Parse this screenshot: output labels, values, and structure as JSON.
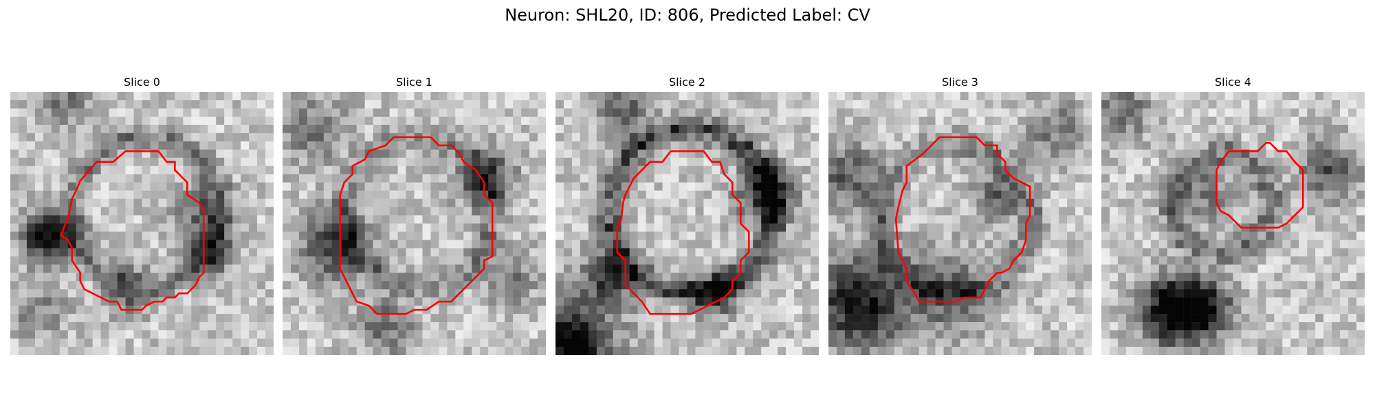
{
  "figure": {
    "title": "Neuron: SHL20, ID: 806, Predicted Label: CV"
  },
  "panels": [
    {
      "label": "Slice 0",
      "contour_color": "#ff0000",
      "image": "grayscale-em-patch"
    },
    {
      "label": "Slice 1",
      "contour_color": "#ff0000",
      "image": "grayscale-em-patch"
    },
    {
      "label": "Slice 2",
      "contour_color": "#ff0000",
      "image": "grayscale-em-patch"
    },
    {
      "label": "Slice 3",
      "contour_color": "#ff0000",
      "image": "grayscale-em-patch"
    },
    {
      "label": "Slice 4",
      "contour_color": "#ff0000",
      "image": "grayscale-em-patch"
    }
  ]
}
